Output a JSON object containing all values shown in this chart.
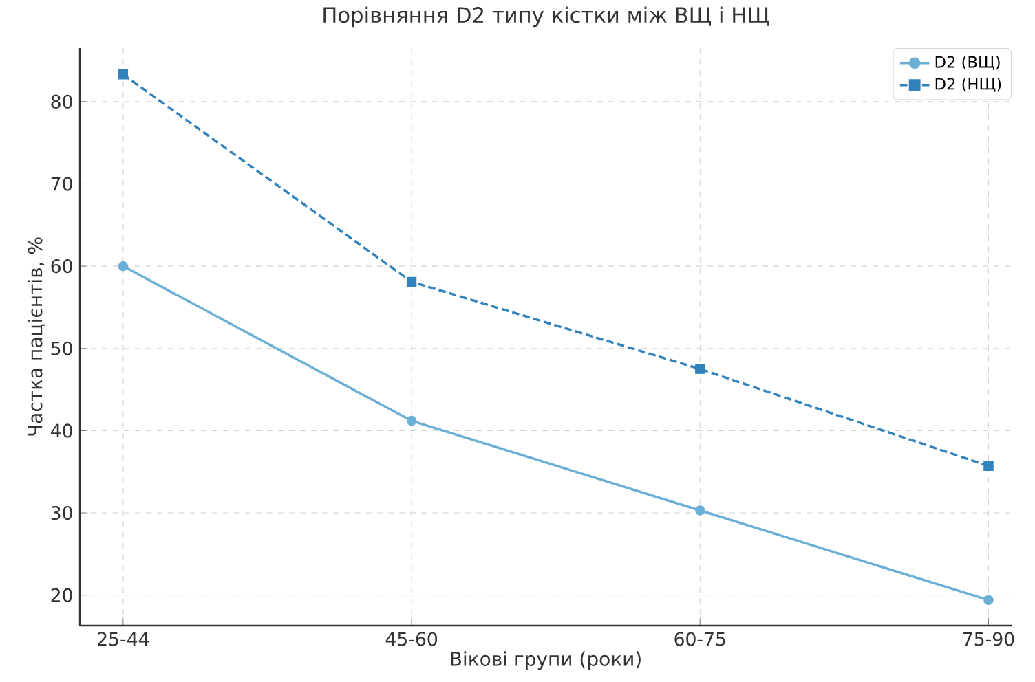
{
  "chart_data": {
    "type": "line",
    "title": "Порівняння D2 типу кістки між ВЩ і НЩ",
    "xlabel": "Вікові групи (роки)",
    "ylabel": "Частка пацієнтів, %",
    "categories": [
      "25-44",
      "45-60",
      "60-75",
      "75-90"
    ],
    "series": [
      {
        "name": "D2 (ВЩ)",
        "color": "#6baed6",
        "values": [
          60,
          41.2,
          30.3,
          19.4
        ],
        "marker": "circle",
        "line_style": "solid"
      },
      {
        "name": "D2 (НЩ)",
        "color": "#3182bd",
        "values": [
          83.3,
          58.1,
          47.5,
          35.7
        ],
        "marker": "square",
        "line_style": "dashed"
      }
    ],
    "ylim": [
      16.3,
      86.5
    ],
    "yticks": [
      20,
      30,
      40,
      50,
      60,
      70,
      80
    ],
    "grid": true,
    "legend": "top right"
  }
}
